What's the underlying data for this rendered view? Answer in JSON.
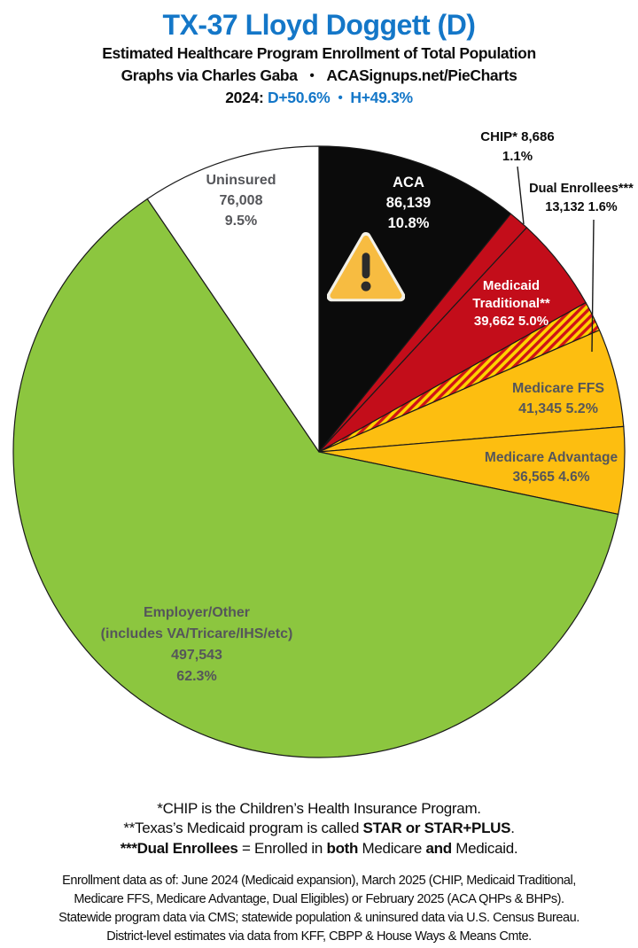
{
  "header": {
    "title": "TX-37 Lloyd Doggett (D)",
    "subtitle": "Estimated Healthcare Program Enrollment of Total Population",
    "credit": {
      "left": "Graphs via Charles Gaba",
      "bullet": "•",
      "right": "ACASignups.net/PieCharts"
    },
    "partisan": {
      "year_label": "2024:",
      "d_value": "D+50.6%",
      "bullet": "•",
      "h_value": "H+49.3%"
    }
  },
  "colors": {
    "title_blue": "#1477C8",
    "label_gray": "#55565A",
    "slice_stroke": "#1A1A1A",
    "black_slice": "#0B0B0B",
    "red_slice": "#C30D1A",
    "gold_slice": "#FDBE10",
    "green_slice": "#8CC63F",
    "white_slice": "#FFFFFF",
    "hatch_base": "#FFD200",
    "hatch_stripe": "#D01317"
  },
  "chart_data": {
    "type": "pie",
    "title": "Estimated Healthcare Program Enrollment of Total Population",
    "start_angle_deg": -90,
    "direction": "clockwise",
    "total_population_shown_pct": 100.1,
    "slices": [
      {
        "name": "ACA",
        "value": 86139,
        "pct": 10.8,
        "fill": "#0B0B0B",
        "label_lines": [
          "ACA",
          "86,139",
          "10.8%"
        ]
      },
      {
        "name": "CHIP",
        "value": 8686,
        "pct": 1.1,
        "fill": "#C30D1A",
        "label_lines": [
          "CHIP* 8,686",
          "1.1%"
        ]
      },
      {
        "name": "Medicaid Traditional",
        "value": 39662,
        "pct": 5.0,
        "fill": "#C30D1A",
        "label_lines": [
          "Medicaid",
          "Traditional**",
          "39,662 5.0%"
        ]
      },
      {
        "name": "Dual Enrollees",
        "value": 13132,
        "pct": 1.6,
        "fill": "pattern:dual-hatch",
        "label_lines": [
          "Dual Enrollees***",
          "13,132 1.6%"
        ]
      },
      {
        "name": "Medicare FFS",
        "value": 41345,
        "pct": 5.2,
        "fill": "#FDBE10",
        "label_lines": [
          "Medicare FFS",
          "41,345 5.2%"
        ]
      },
      {
        "name": "Medicare Advantage",
        "value": 36565,
        "pct": 4.6,
        "fill": "#FDBE10",
        "label_lines": [
          "Medicare Advantage",
          "36,565 4.6%"
        ]
      },
      {
        "name": "Employer/Other",
        "value": 497543,
        "pct": 62.3,
        "fill": "#8CC63F",
        "label_lines": [
          "Employer/Other",
          "(includes VA/Tricare/IHS/etc)",
          "497,543",
          "62.3%"
        ]
      },
      {
        "name": "Uninsured",
        "value": 76008,
        "pct": 9.5,
        "fill": "#FFFFFF",
        "label_lines": [
          "Uninsured",
          "76,008",
          "9.5%"
        ]
      }
    ],
    "hatch_colors": {
      "base": "#FFD200",
      "stripe": "#D01317"
    },
    "legend_position": "labels-on-slices"
  },
  "footnotes": {
    "line1": {
      "parts": [
        {
          "t": "*CHIP is the Children’s Health Insurance Program.",
          "b": false
        }
      ]
    },
    "line2": {
      "parts": [
        {
          "t": "**Texas’s Medicaid program is called ",
          "b": false
        },
        {
          "t": "STAR or STAR+PLUS",
          "b": true
        },
        {
          "t": ".",
          "b": false
        }
      ]
    },
    "line3": {
      "parts": [
        {
          "t": "***Dual Enrollees",
          "b": true
        },
        {
          "t": " = Enrolled in ",
          "b": false
        },
        {
          "t": "both",
          "b": true
        },
        {
          "t": " Medicare ",
          "b": false
        },
        {
          "t": "and",
          "b": true
        },
        {
          "t": " Medicaid.",
          "b": false
        }
      ]
    }
  },
  "sources": {
    "lines": [
      "Enrollment data as of: June 2024 (Medicaid expansion), March 2025 (CHIP, Medicaid Traditional,",
      "Medicare FFS, Medicare Advantage, Dual Eligibles) or February 2025 (ACA QHPs & BHPs).",
      "Statewide program data via CMS; statewide population & uninsured data via U.S. Census Bureau.",
      "District-level estimates via data from KFF, CBPP & House Ways & Means Cmte."
    ]
  }
}
